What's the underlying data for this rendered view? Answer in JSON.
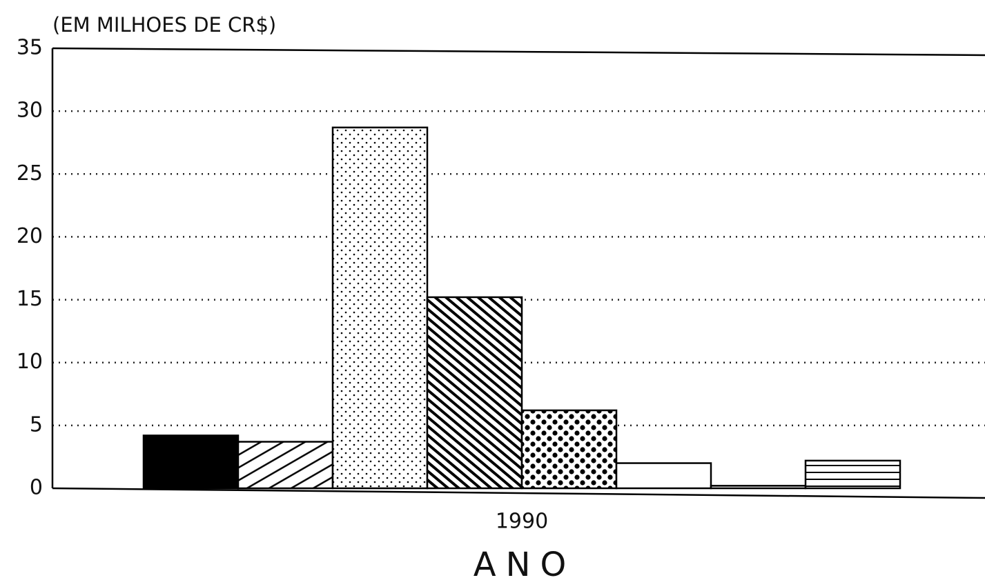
{
  "chart_data": {
    "type": "bar",
    "y_label": "(EM MILHOES DE CR$)",
    "x_label": "ANO",
    "categories": [
      "1990"
    ],
    "series": [
      {
        "color": "#000000",
        "pattern": "solid",
        "values": [
          4.2
        ]
      },
      {
        "color": "#000000",
        "pattern": "diagonal-up",
        "values": [
          3.7
        ]
      },
      {
        "color": "#000000",
        "pattern": "fine-dots",
        "values": [
          28.7
        ]
      },
      {
        "color": "#000000",
        "pattern": "diagonal-down",
        "values": [
          15.2
        ]
      },
      {
        "color": "#000000",
        "pattern": "bold-dots",
        "values": [
          6.2
        ]
      },
      {
        "color": "#000000",
        "pattern": "empty",
        "values": [
          2.0
        ]
      },
      {
        "color": "#000000",
        "pattern": "empty",
        "values": [
          0.2
        ]
      },
      {
        "color": "#000000",
        "pattern": "horizontal",
        "values": [
          2.2
        ]
      }
    ],
    "ylim": [
      0,
      35
    ],
    "yticks": [
      0,
      5,
      10,
      15,
      20,
      25,
      30,
      35
    ],
    "grid": true
  }
}
